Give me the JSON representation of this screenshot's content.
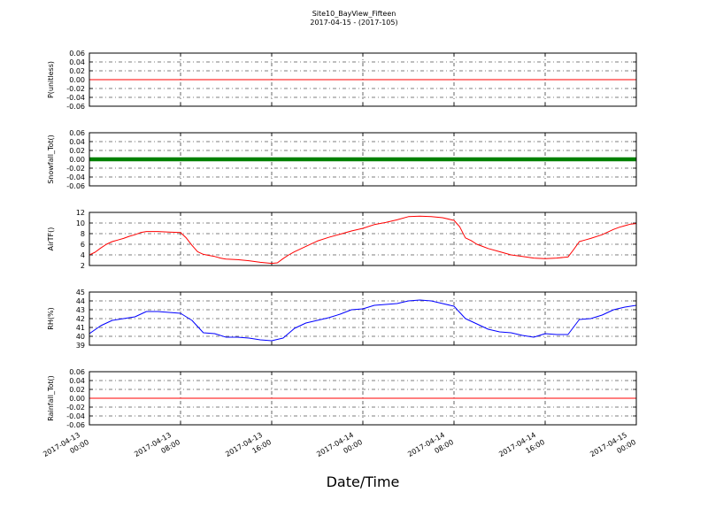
{
  "title": "Site10_BayView_Fifteen",
  "subtitle": "2017-04-15 - (2017-105)",
  "xlabel": "Date/Time",
  "x_ticks": [
    {
      "x": "2017-04-13 00:00",
      "line1": "2017-04-13",
      "line2": "00:00"
    },
    {
      "x": "2017-04-13 08:00",
      "line1": "2017-04-13",
      "line2": "08:00"
    },
    {
      "x": "2017-04-13 16:00",
      "line1": "2017-04-13",
      "line2": "16:00"
    },
    {
      "x": "2017-04-14 00:00",
      "line1": "2017-04-14",
      "line2": "00:00"
    },
    {
      "x": "2017-04-14 08:00",
      "line1": "2017-04-14",
      "line2": "08:00"
    },
    {
      "x": "2017-04-14 16:00",
      "line1": "2017-04-14",
      "line2": "16:00"
    },
    {
      "x": "2017-04-15 00:00",
      "line1": "2017-04-15",
      "line2": "00:00"
    }
  ],
  "chart_data": [
    {
      "type": "line",
      "ylabel": "P(unitless)",
      "xlim": [
        "2017-04-13 00:00",
        "2017-04-15 00:00"
      ],
      "ylim": [
        -0.06,
        0.06
      ],
      "yticks": [
        "-0.06",
        "-0.04",
        "-0.02",
        "0.00",
        "0.02",
        "0.04",
        "0.06"
      ],
      "grid": true,
      "color": "#ff0000",
      "marker": false,
      "series": [
        {
          "x": [
            "2017-04-13 00:00",
            "2017-04-15 00:00"
          ],
          "y": [
            0,
            0
          ]
        }
      ]
    },
    {
      "type": "line",
      "ylabel": "Snowfall_Tot()",
      "xlim": [
        "2017-04-13 00:00",
        "2017-04-15 00:00"
      ],
      "ylim": [
        -0.06,
        0.06
      ],
      "yticks": [
        "-0.06",
        "-0.04",
        "-0.02",
        "0.00",
        "0.02",
        "0.04",
        "0.06"
      ],
      "grid": true,
      "color": "#008000",
      "marker": true,
      "series": [
        {
          "x": [
            "2017-04-13 00:00",
            "2017-04-15 00:00"
          ],
          "y": [
            0,
            0
          ]
        }
      ]
    },
    {
      "type": "line",
      "ylabel": "AirTF()",
      "xlim": [
        "2017-04-13 00:00",
        "2017-04-15 00:00"
      ],
      "ylim": [
        2,
        12
      ],
      "yticks": [
        "2",
        "4",
        "6",
        "8",
        "10",
        "12"
      ],
      "grid": true,
      "color": "#ff0000",
      "marker": false,
      "series": [
        {
          "x": [
            "2017-04-13 00:00",
            "2017-04-13 00:30",
            "2017-04-13 01:00",
            "2017-04-13 01:30",
            "2017-04-13 02:00",
            "2017-04-13 02:30",
            "2017-04-13 03:00",
            "2017-04-13 03:30",
            "2017-04-13 04:00",
            "2017-04-13 04:30",
            "2017-04-13 05:00",
            "2017-04-13 06:00",
            "2017-04-13 07:00",
            "2017-04-13 08:00",
            "2017-04-13 08:30",
            "2017-04-13 09:00",
            "2017-04-13 09:30",
            "2017-04-13 10:00",
            "2017-04-13 10:30",
            "2017-04-13 11:00",
            "2017-04-13 11:30",
            "2017-04-13 12:00",
            "2017-04-13 13:00",
            "2017-04-13 14:00",
            "2017-04-13 15:00",
            "2017-04-13 16:00",
            "2017-04-13 16:30",
            "2017-04-13 17:00",
            "2017-04-13 17:30",
            "2017-04-13 18:00",
            "2017-04-13 19:00",
            "2017-04-13 20:00",
            "2017-04-13 21:00",
            "2017-04-13 22:00",
            "2017-04-13 23:00",
            "2017-04-14 00:00",
            "2017-04-14 01:00",
            "2017-04-14 02:00",
            "2017-04-14 03:00",
            "2017-04-14 04:00",
            "2017-04-14 05:00",
            "2017-04-14 06:00",
            "2017-04-14 07:00",
            "2017-04-14 08:00",
            "2017-04-14 08:30",
            "2017-04-14 09:00",
            "2017-04-14 09:30",
            "2017-04-14 10:00",
            "2017-04-14 10:30",
            "2017-04-14 11:00",
            "2017-04-14 12:00",
            "2017-04-14 13:00",
            "2017-04-14 14:00",
            "2017-04-14 15:00",
            "2017-04-14 16:00",
            "2017-04-14 17:00",
            "2017-04-14 18:00",
            "2017-04-14 18:30",
            "2017-04-14 19:00",
            "2017-04-14 19:30",
            "2017-04-14 20:00",
            "2017-04-14 21:00",
            "2017-04-14 22:00",
            "2017-04-14 22:30",
            "2017-04-14 23:00",
            "2017-04-14 23:30",
            "2017-04-15 00:00"
          ],
          "y": [
            4.0,
            4.5,
            5.3,
            6.0,
            6.5,
            6.8,
            7.1,
            7.5,
            7.8,
            8.2,
            8.4,
            8.4,
            8.3,
            8.2,
            7.2,
            5.8,
            4.6,
            4.1,
            3.9,
            3.7,
            3.4,
            3.2,
            3.1,
            2.9,
            2.6,
            2.4,
            2.5,
            3.3,
            4.0,
            4.6,
            5.6,
            6.6,
            7.3,
            7.9,
            8.5,
            9.0,
            9.7,
            10.1,
            10.6,
            11.2,
            11.3,
            11.2,
            11.0,
            10.5,
            9.3,
            7.2,
            6.7,
            6.0,
            5.6,
            5.2,
            4.6,
            4.0,
            3.7,
            3.4,
            3.3,
            3.4,
            3.6,
            5.0,
            6.5,
            6.8,
            7.1,
            7.8,
            8.8,
            9.2,
            9.5,
            9.8,
            9.9
          ]
        }
      ]
    },
    {
      "type": "line",
      "ylabel": "RH(%)",
      "xlim": [
        "2017-04-13 00:00",
        "2017-04-15 00:00"
      ],
      "ylim": [
        39,
        45
      ],
      "yticks": [
        "39",
        "40",
        "41",
        "42",
        "43",
        "44",
        "45"
      ],
      "grid": true,
      "color": "#0000ff",
      "marker": false,
      "series": [
        {
          "x": [
            "2017-04-13 00:00",
            "2017-04-13 01:00",
            "2017-04-13 02:00",
            "2017-04-13 03:00",
            "2017-04-13 04:00",
            "2017-04-13 05:00",
            "2017-04-13 06:00",
            "2017-04-13 07:00",
            "2017-04-13 08:00",
            "2017-04-13 09:00",
            "2017-04-13 10:00",
            "2017-04-13 11:00",
            "2017-04-13 12:00",
            "2017-04-13 13:00",
            "2017-04-13 14:00",
            "2017-04-13 15:00",
            "2017-04-13 16:00",
            "2017-04-13 17:00",
            "2017-04-13 18:00",
            "2017-04-13 19:00",
            "2017-04-13 20:00",
            "2017-04-13 21:00",
            "2017-04-13 22:00",
            "2017-04-13 23:00",
            "2017-04-14 00:00",
            "2017-04-14 01:00",
            "2017-04-14 02:00",
            "2017-04-14 03:00",
            "2017-04-14 04:00",
            "2017-04-14 05:00",
            "2017-04-14 06:00",
            "2017-04-14 07:00",
            "2017-04-14 08:00",
            "2017-04-14 09:00",
            "2017-04-14 10:00",
            "2017-04-14 11:00",
            "2017-04-14 12:00",
            "2017-04-14 13:00",
            "2017-04-14 14:00",
            "2017-04-14 15:00",
            "2017-04-14 16:00",
            "2017-04-14 17:00",
            "2017-04-14 18:00",
            "2017-04-14 19:00",
            "2017-04-14 20:00",
            "2017-04-14 21:00",
            "2017-04-14 22:00",
            "2017-04-14 23:00",
            "2017-04-15 00:00"
          ],
          "y": [
            40.3,
            41.2,
            41.8,
            42.0,
            42.2,
            42.8,
            42.8,
            42.7,
            42.6,
            41.8,
            40.4,
            40.3,
            39.9,
            39.9,
            39.8,
            39.6,
            39.5,
            39.8,
            40.9,
            41.5,
            41.8,
            42.1,
            42.5,
            43.0,
            43.1,
            43.5,
            43.6,
            43.7,
            44.0,
            44.1,
            44.0,
            43.7,
            43.4,
            42.0,
            41.4,
            40.8,
            40.5,
            40.4,
            40.1,
            39.9,
            40.3,
            40.2,
            40.2,
            41.9,
            42.0,
            42.4,
            43.0,
            43.3,
            43.5
          ]
        }
      ]
    },
    {
      "type": "line",
      "ylabel": "Rainfall_Tot()",
      "xlim": [
        "2017-04-13 00:00",
        "2017-04-15 00:00"
      ],
      "ylim": [
        -0.06,
        0.06
      ],
      "yticks": [
        "-0.06",
        "-0.04",
        "-0.02",
        "0.00",
        "0.02",
        "0.04",
        "0.06"
      ],
      "grid": true,
      "color": "#ff0000",
      "marker": false,
      "series": [
        {
          "x": [
            "2017-04-13 00:00",
            "2017-04-15 00:00"
          ],
          "y": [
            0,
            0
          ]
        }
      ]
    }
  ]
}
